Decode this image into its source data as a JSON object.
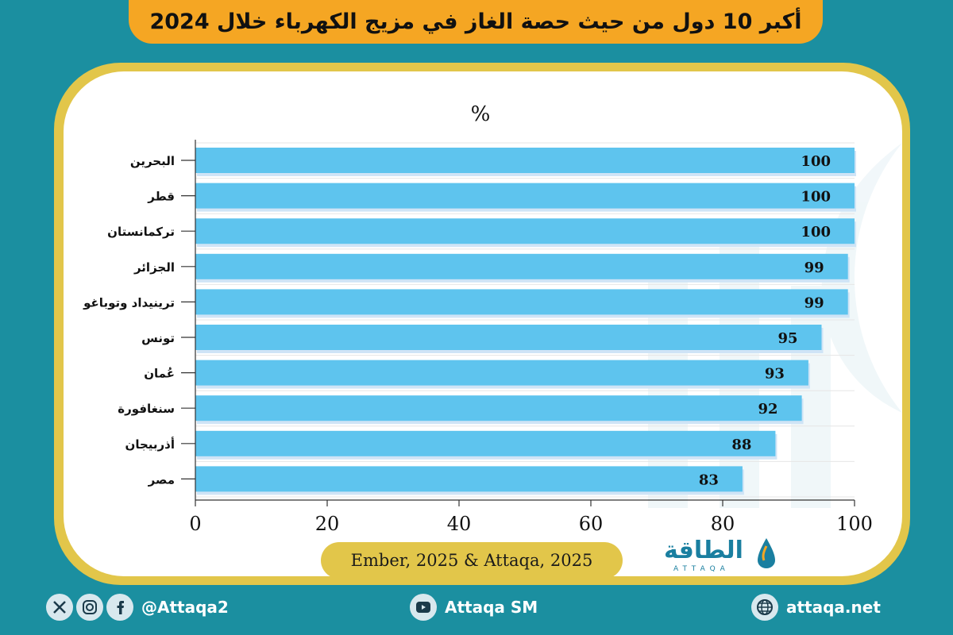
{
  "title": "أكبر 10 دول من حيث حصة الغاز في مزيج الكهرباء خلال 2024",
  "source": "Ember, 2025 & Attaqa, 2025",
  "logo": {
    "arabic": "الطاقة",
    "latin": "ATTAQA"
  },
  "footer": {
    "social_handle": "@Attaqa2",
    "youtube": "Attaqa SM",
    "website": "attaqa.net"
  },
  "colors": {
    "bar": "#5ec4ee",
    "background": "#1b8fa0",
    "frame": "#e2c64a",
    "banner": "#f5a623"
  },
  "chart_data": {
    "type": "bar",
    "orientation": "horizontal",
    "unit_label": "%",
    "categories": [
      "البحرين",
      "قطر",
      "تركمانستان",
      "الجزائر",
      "ترينيداد وتوباغو",
      "تونس",
      "عُمان",
      "سنغافورة",
      "أذربيجان",
      "مصر"
    ],
    "values": [
      100,
      100,
      100,
      99,
      99,
      95,
      93,
      92,
      88,
      83
    ],
    "xlim": [
      0,
      100
    ],
    "x_ticks": [
      "0",
      "20",
      "40",
      "60",
      "80",
      "100"
    ],
    "grid": true,
    "data_labels": true
  }
}
